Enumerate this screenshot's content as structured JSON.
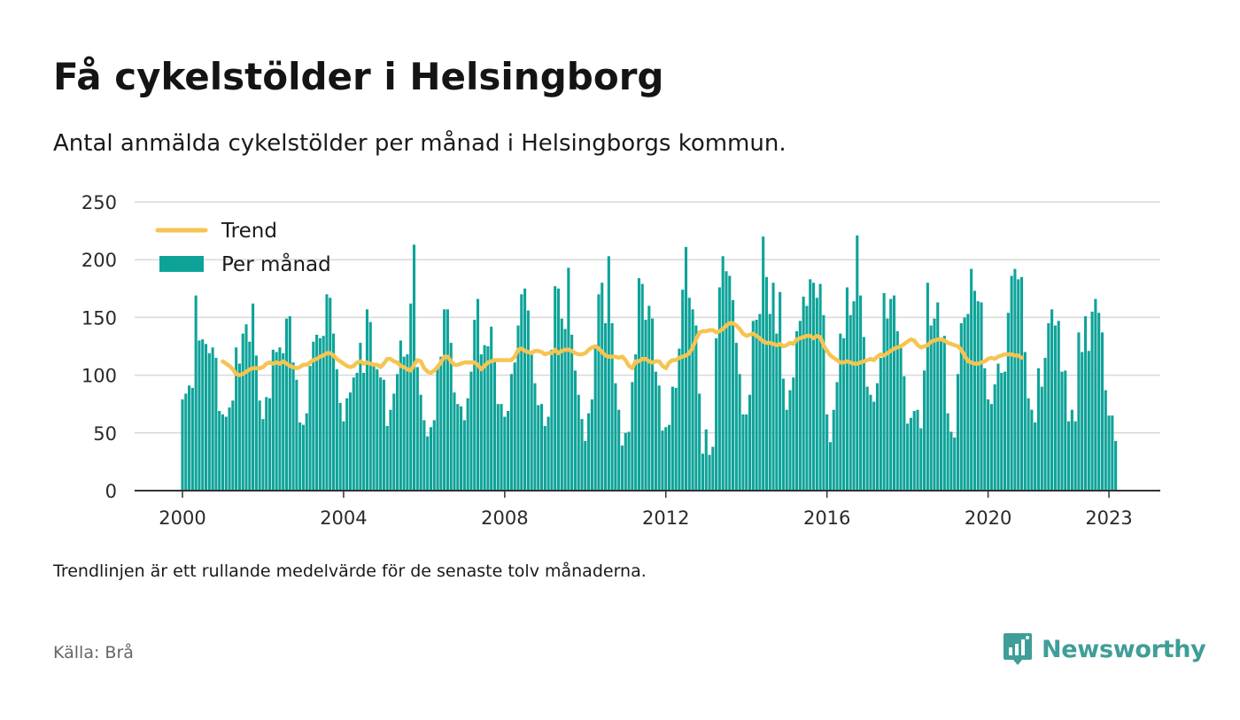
{
  "header": {
    "title": "Få cykelstölder i Helsingborg",
    "subtitle": "Antal anmälda cykelstölder per månad i Helsingborgs kommun."
  },
  "footer": {
    "note": "Trendlinjen är ett rullande medelvärde för de senaste tolv månaderna.",
    "source": "Källa: Brå",
    "brand": "Newsworthy"
  },
  "brand_icon": "newsworthy-chart-badge-icon",
  "colors": {
    "bars": "#0ea399",
    "trend": "#f6c451",
    "grid": "#d9d9d9",
    "axis": "#333333",
    "brand": "#3f9e97"
  },
  "chart_data": {
    "type": "bar",
    "x_start": "2000-01",
    "x_end": "2023-02",
    "xticks": [
      "2000",
      "2004",
      "2008",
      "2012",
      "2016",
      "2020",
      "2023"
    ],
    "ylim": [
      0,
      250
    ],
    "yticks": [
      "0",
      "50",
      "100",
      "150",
      "200",
      "250"
    ],
    "grid": true,
    "legend_position": "top-left",
    "series": [
      {
        "name": "Per månad",
        "type": "bar",
        "values": [
          79,
          84,
          91,
          89,
          169,
          130,
          131,
          127,
          119,
          124,
          115,
          69,
          66,
          64,
          72,
          78,
          124,
          110,
          136,
          144,
          129,
          162,
          117,
          78,
          62,
          81,
          80,
          122,
          120,
          124,
          119,
          149,
          151,
          111,
          96,
          59,
          57,
          67,
          108,
          129,
          135,
          132,
          134,
          170,
          167,
          136,
          105,
          76,
          60,
          80,
          85,
          98,
          102,
          128,
          102,
          157,
          146,
          108,
          105,
          98,
          96,
          56,
          70,
          84,
          101,
          130,
          116,
          118,
          162,
          213,
          107,
          83,
          61,
          47,
          55,
          61,
          109,
          116,
          157,
          157,
          128,
          85,
          75,
          73,
          61,
          80,
          103,
          148,
          166,
          118,
          126,
          125,
          142,
          114,
          75,
          75,
          64,
          69,
          101,
          111,
          143,
          170,
          175,
          156,
          118,
          93,
          74,
          75,
          56,
          64,
          122,
          177,
          175,
          149,
          140,
          193,
          135,
          104,
          83,
          62,
          43,
          67,
          79,
          125,
          170,
          180,
          145,
          203,
          145,
          93,
          70,
          39,
          50,
          51,
          94,
          118,
          184,
          179,
          148,
          160,
          149,
          103,
          91,
          52,
          55,
          57,
          90,
          89,
          123,
          174,
          211,
          167,
          157,
          143,
          84,
          32,
          53,
          31,
          38,
          132,
          176,
          203,
          190,
          186,
          165,
          128,
          101,
          66,
          66,
          83,
          147,
          148,
          153,
          220,
          185,
          153,
          180,
          136,
          172,
          97,
          70,
          87,
          98,
          138,
          147,
          168,
          160,
          183,
          180,
          167,
          179,
          152,
          66,
          42,
          70,
          94,
          136,
          132,
          176,
          152,
          164,
          221,
          169,
          133,
          90,
          83,
          77,
          93,
          115,
          171,
          149,
          166,
          169,
          138,
          125,
          99,
          58,
          63,
          69,
          70,
          54,
          104,
          180,
          143,
          149,
          163,
          132,
          134,
          67,
          51,
          46,
          101,
          145,
          150,
          153,
          192,
          173,
          164,
          163,
          106,
          79,
          75,
          92,
          110,
          102,
          103,
          154,
          186,
          192,
          183,
          185,
          120,
          80,
          70,
          59,
          106,
          90,
          115,
          145,
          157,
          143,
          147,
          103,
          104,
          60,
          70,
          60,
          137,
          120,
          151,
          121,
          155,
          166,
          154,
          137,
          87,
          65,
          65,
          43
        ]
      },
      {
        "name": "Trend",
        "type": "line",
        "start": "2001-01",
        "values": [
          112,
          110,
          108,
          105,
          101,
          100,
          101,
          103,
          105,
          106,
          106,
          106,
          107,
          110,
          111,
          110,
          111,
          110,
          112,
          110,
          108,
          107,
          106,
          107,
          109,
          109,
          111,
          113,
          114,
          116,
          117,
          119,
          119,
          117,
          114,
          112,
          110,
          108,
          107,
          108,
          111,
          112,
          110,
          111,
          110,
          109,
          109,
          107,
          110,
          114,
          114,
          112,
          111,
          108,
          107,
          105,
          104,
          109,
          113,
          112,
          106,
          103,
          102,
          104,
          107,
          111,
          116,
          116,
          112,
          109,
          109,
          110,
          111,
          111,
          111,
          111,
          109,
          105,
          108,
          111,
          112,
          113,
          113,
          113,
          113,
          113,
          113,
          116,
          122,
          123,
          121,
          120,
          119,
          121,
          121,
          120,
          118,
          119,
          119,
          122,
          119,
          121,
          122,
          122,
          121,
          119,
          118,
          118,
          119,
          122,
          124,
          125,
          123,
          120,
          117,
          116,
          116,
          116,
          115,
          116,
          113,
          108,
          106,
          112,
          112,
          114,
          114,
          112,
          111,
          112,
          112,
          108,
          106,
          111,
          113,
          113,
          115,
          116,
          117,
          119,
          124,
          131,
          137,
          138,
          138,
          139,
          139,
          137,
          138,
          140,
          143,
          145,
          145,
          143,
          140,
          136,
          134,
          135,
          136,
          134,
          132,
          129,
          128,
          128,
          127,
          126,
          127,
          125,
          126,
          128,
          127,
          131,
          132,
          133,
          134,
          134,
          132,
          134,
          133,
          126,
          121,
          117,
          115,
          113,
          111,
          111,
          112,
          111,
          110,
          110,
          111,
          112,
          113,
          114,
          113,
          116,
          118,
          117,
          119,
          121,
          123,
          124,
          125,
          127,
          129,
          131,
          130,
          126,
          124,
          125,
          126,
          129,
          130,
          131,
          131,
          130,
          128,
          127,
          126,
          125,
          122,
          117,
          112,
          111,
          110,
          110,
          111,
          112,
          114,
          115,
          114,
          116,
          117,
          118,
          118,
          118,
          117,
          117,
          115
        ]
      }
    ]
  }
}
